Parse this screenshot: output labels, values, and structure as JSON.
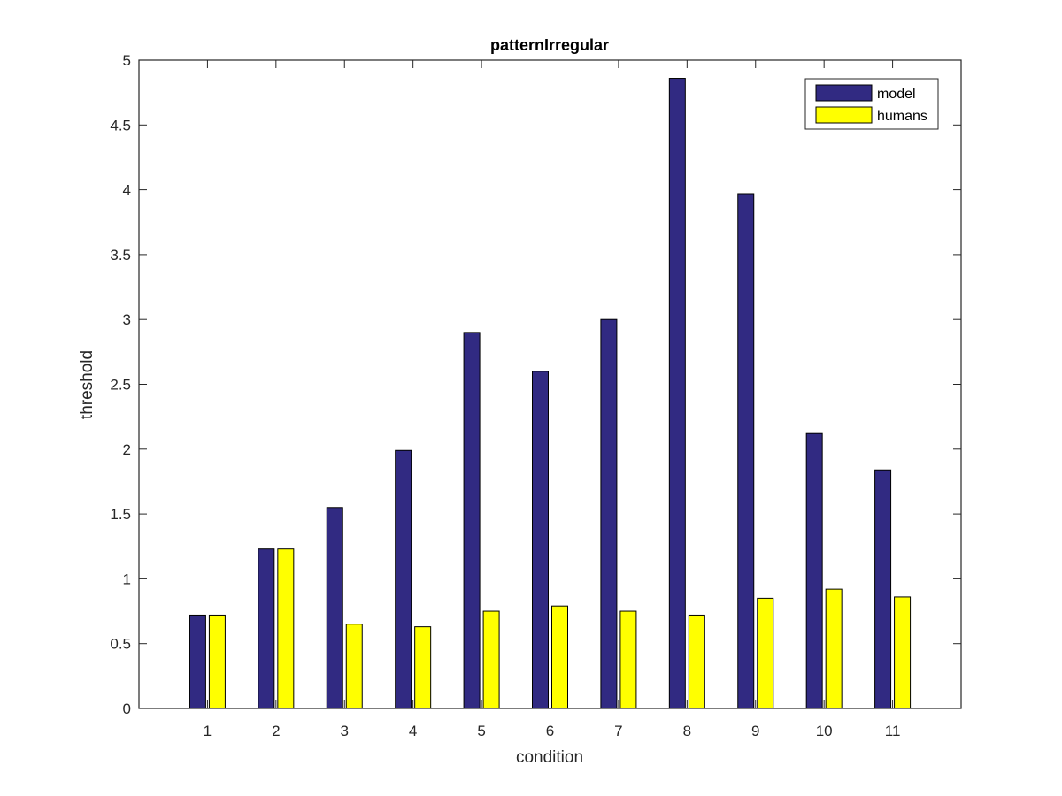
{
  "chart_data": {
    "type": "bar",
    "title": "patternIrregular",
    "xlabel": "condition",
    "ylabel": "threshold",
    "categories": [
      "1",
      "2",
      "3",
      "4",
      "5",
      "6",
      "7",
      "8",
      "9",
      "10",
      "11"
    ],
    "series": [
      {
        "name": "model",
        "color": "#312a82",
        "values": [
          0.72,
          1.23,
          1.55,
          1.99,
          2.9,
          2.6,
          3.0,
          4.86,
          3.97,
          2.12,
          1.84
        ]
      },
      {
        "name": "humans",
        "color": "#ffff00",
        "values": [
          0.72,
          1.23,
          0.65,
          0.63,
          0.75,
          0.79,
          0.75,
          0.72,
          0.85,
          0.92,
          0.86
        ]
      }
    ],
    "ylim": [
      0,
      5
    ],
    "yticks": [
      "0",
      "0.5",
      "1",
      "1.5",
      "2",
      "2.5",
      "3",
      "3.5",
      "4",
      "4.5",
      "5"
    ],
    "xlim": [
      0,
      12
    ],
    "grid": false,
    "legend_position": "top-right"
  }
}
